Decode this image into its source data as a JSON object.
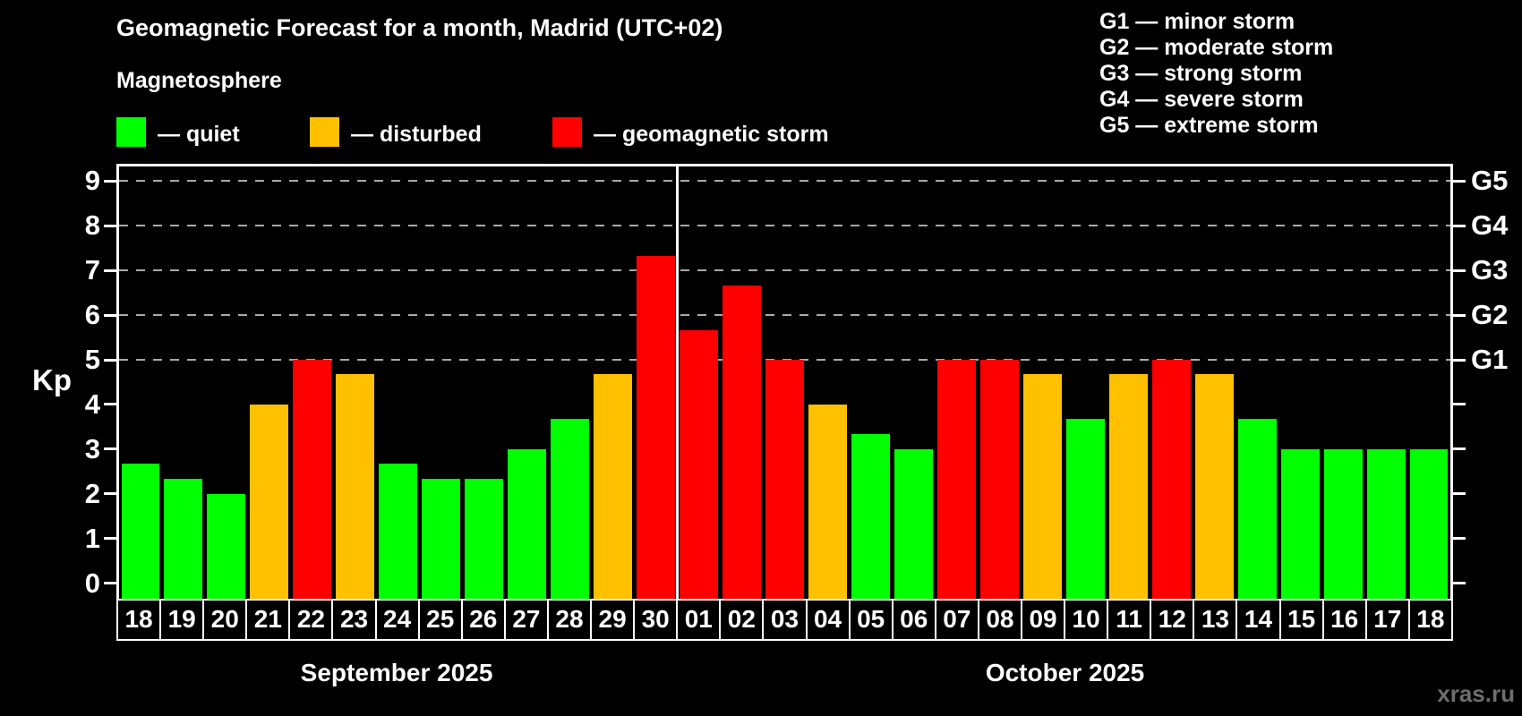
{
  "header": {
    "title": "Geomagnetic Forecast for a month, Madrid (UTC+02)",
    "subtitle": "Magnetosphere"
  },
  "legend": {
    "quiet": "— quiet",
    "disturbed": "— disturbed",
    "storm": "— geomagnetic storm"
  },
  "storm_scale": [
    "G1 — minor storm",
    "G2 — moderate storm",
    "G3 — strong storm",
    "G4 — severe storm",
    "G5 — extreme storm"
  ],
  "axes": {
    "y_title": "Kp",
    "y_ticks": [
      0,
      1,
      2,
      3,
      4,
      5,
      6,
      7,
      8,
      9
    ]
  },
  "watermark": "xras.ru",
  "colors": {
    "quiet": "#00ff00",
    "disturbed": "#ffc000",
    "storm": "#ff0000",
    "background": "#000000",
    "text": "#ffffff",
    "grid": "#a9a9a9",
    "watermark": "#6e6e6e"
  },
  "chart_data": {
    "type": "bar",
    "title": "Geomagnetic Forecast for a month, Madrid (UTC+02)",
    "ylabel": "Kp",
    "ylim": [
      0,
      9
    ],
    "grid": "dashed horizontal at Kp 5-9",
    "gridlines_at": [
      5,
      6,
      7,
      8,
      9
    ],
    "right_axis": [
      {
        "kp": 5,
        "label": "G1"
      },
      {
        "kp": 6,
        "label": "G2"
      },
      {
        "kp": 7,
        "label": "G3"
      },
      {
        "kp": 8,
        "label": "G4"
      },
      {
        "kp": 9,
        "label": "G5"
      }
    ],
    "months": [
      {
        "label": "September 2025",
        "days": [
          "18",
          "19",
          "20",
          "21",
          "22",
          "23",
          "24",
          "25",
          "26",
          "27",
          "28",
          "29",
          "30"
        ]
      },
      {
        "label": "October 2025",
        "days": [
          "01",
          "02",
          "03",
          "04",
          "05",
          "06",
          "07",
          "08",
          "09",
          "10",
          "11",
          "12",
          "13",
          "14",
          "15",
          "16",
          "17",
          "18"
        ]
      }
    ],
    "points": [
      {
        "month": "September 2025",
        "day": "18",
        "kp": 2.67,
        "status": "quiet"
      },
      {
        "month": "September 2025",
        "day": "19",
        "kp": 2.33,
        "status": "quiet"
      },
      {
        "month": "September 2025",
        "day": "20",
        "kp": 2.0,
        "status": "quiet"
      },
      {
        "month": "September 2025",
        "day": "21",
        "kp": 4.0,
        "status": "disturbed"
      },
      {
        "month": "September 2025",
        "day": "22",
        "kp": 5.0,
        "status": "storm"
      },
      {
        "month": "September 2025",
        "day": "23",
        "kp": 4.67,
        "status": "disturbed"
      },
      {
        "month": "September 2025",
        "day": "24",
        "kp": 2.67,
        "status": "quiet"
      },
      {
        "month": "September 2025",
        "day": "25",
        "kp": 2.33,
        "status": "quiet"
      },
      {
        "month": "September 2025",
        "day": "26",
        "kp": 2.33,
        "status": "quiet"
      },
      {
        "month": "September 2025",
        "day": "27",
        "kp": 3.0,
        "status": "quiet"
      },
      {
        "month": "September 2025",
        "day": "28",
        "kp": 3.67,
        "status": "quiet"
      },
      {
        "month": "September 2025",
        "day": "29",
        "kp": 4.67,
        "status": "disturbed"
      },
      {
        "month": "September 2025",
        "day": "30",
        "kp": 7.33,
        "status": "storm"
      },
      {
        "month": "October 2025",
        "day": "01",
        "kp": 5.67,
        "status": "storm"
      },
      {
        "month": "October 2025",
        "day": "02",
        "kp": 6.67,
        "status": "storm"
      },
      {
        "month": "October 2025",
        "day": "03",
        "kp": 5.0,
        "status": "storm"
      },
      {
        "month": "October 2025",
        "day": "04",
        "kp": 4.0,
        "status": "disturbed"
      },
      {
        "month": "October 2025",
        "day": "05",
        "kp": 3.33,
        "status": "quiet"
      },
      {
        "month": "October 2025",
        "day": "06",
        "kp": 3.0,
        "status": "quiet"
      },
      {
        "month": "October 2025",
        "day": "07",
        "kp": 5.0,
        "status": "storm"
      },
      {
        "month": "October 2025",
        "day": "08",
        "kp": 5.0,
        "status": "storm"
      },
      {
        "month": "October 2025",
        "day": "09",
        "kp": 4.67,
        "status": "disturbed"
      },
      {
        "month": "October 2025",
        "day": "10",
        "kp": 3.67,
        "status": "quiet"
      },
      {
        "month": "October 2025",
        "day": "11",
        "kp": 4.67,
        "status": "disturbed"
      },
      {
        "month": "October 2025",
        "day": "12",
        "kp": 5.0,
        "status": "storm"
      },
      {
        "month": "October 2025",
        "day": "13",
        "kp": 4.67,
        "status": "disturbed"
      },
      {
        "month": "October 2025",
        "day": "14",
        "kp": 3.67,
        "status": "quiet"
      },
      {
        "month": "October 2025",
        "day": "15",
        "kp": 3.0,
        "status": "quiet"
      },
      {
        "month": "October 2025",
        "day": "16",
        "kp": 3.0,
        "status": "quiet"
      },
      {
        "month": "October 2025",
        "day": "17",
        "kp": 3.0,
        "status": "quiet"
      },
      {
        "month": "October 2025",
        "day": "18",
        "kp": 3.0,
        "status": "quiet"
      }
    ]
  }
}
